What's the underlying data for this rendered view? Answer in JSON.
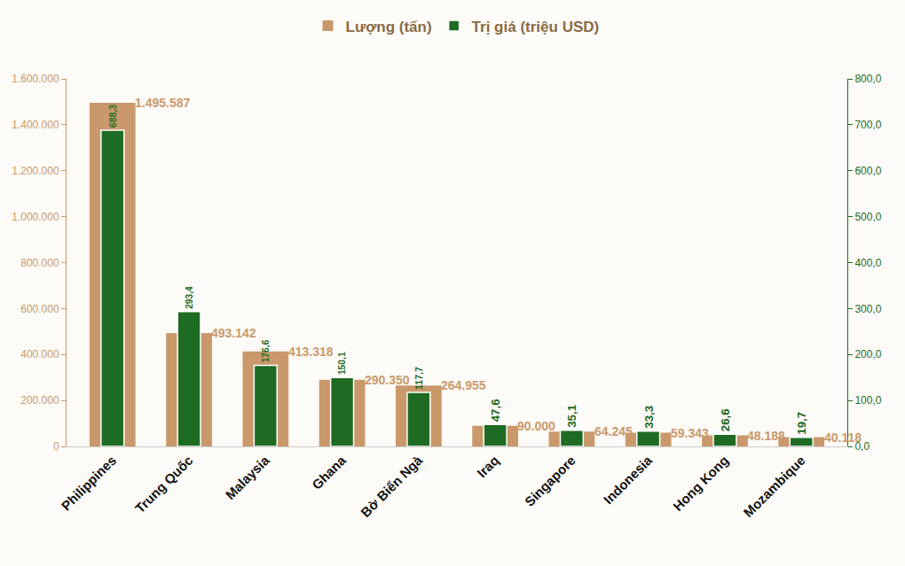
{
  "chart_data": {
    "type": "bar",
    "categories": [
      "Philippines",
      "Trung Quốc",
      "Malaysia",
      "Ghana",
      "Bờ Biển Ngà",
      "Iraq",
      "Singapore",
      "Indonesia",
      "Hong Kong",
      "Mozambique"
    ],
    "series": [
      {
        "name": "Lượng (tấn)",
        "color": "#c9996b",
        "values": [
          1495587,
          493142,
          413318,
          290350,
          264955,
          90000,
          64245,
          59343,
          48188,
          40118
        ],
        "value_labels": [
          "1.495.587",
          "493.142",
          "413.318",
          "290.350",
          "264.955",
          "90.000",
          "64.245",
          "59.343",
          "48.188",
          "40.118"
        ]
      },
      {
        "name": "Trị giá (triệu USD)",
        "color": "#1e6b23",
        "axis": "y2",
        "values": [
          688.3,
          293.4,
          176.6,
          150.1,
          117.7,
          47.6,
          35.1,
          33.3,
          26.6,
          19.7
        ],
        "value_labels": [
          "688,3",
          "293,4",
          "176,6",
          "150,1",
          "117,7",
          "47,6",
          "35,1",
          "33,3",
          "26,6",
          "19,7"
        ]
      }
    ],
    "ylim": [
      0,
      1600000
    ],
    "yticks": [
      0,
      {
        "value": 200000,
        "label": "200.000"
      },
      {
        "value": 400000,
        "label": "400.000"
      },
      {
        "value": 600000,
        "label": "600.000"
      },
      {
        "value": 800000,
        "label": "800.000"
      },
      {
        "value": 1000000,
        "label": "1.000.000"
      },
      {
        "value": 1200000,
        "label": "1.200.000"
      },
      {
        "value": 1400000,
        "label": "1.400.000"
      },
      {
        "value": 1600000,
        "label": "1.600.000"
      }
    ],
    "y2lim": [
      0,
      800
    ],
    "y2ticks": [
      {
        "value": 0,
        "label": "0,0"
      },
      {
        "value": 100,
        "label": "100,0"
      },
      {
        "value": 200,
        "label": "200,0"
      },
      {
        "value": 300,
        "label": "300,0"
      },
      {
        "value": 400,
        "label": "400,0"
      },
      {
        "value": 500,
        "label": "500,0"
      },
      {
        "value": 600,
        "label": "600,0"
      },
      {
        "value": 700,
        "label": "700,0"
      },
      {
        "value": 800,
        "label": "800,0"
      }
    ],
    "grid": false,
    "legend": "top",
    "data_labels": true
  }
}
